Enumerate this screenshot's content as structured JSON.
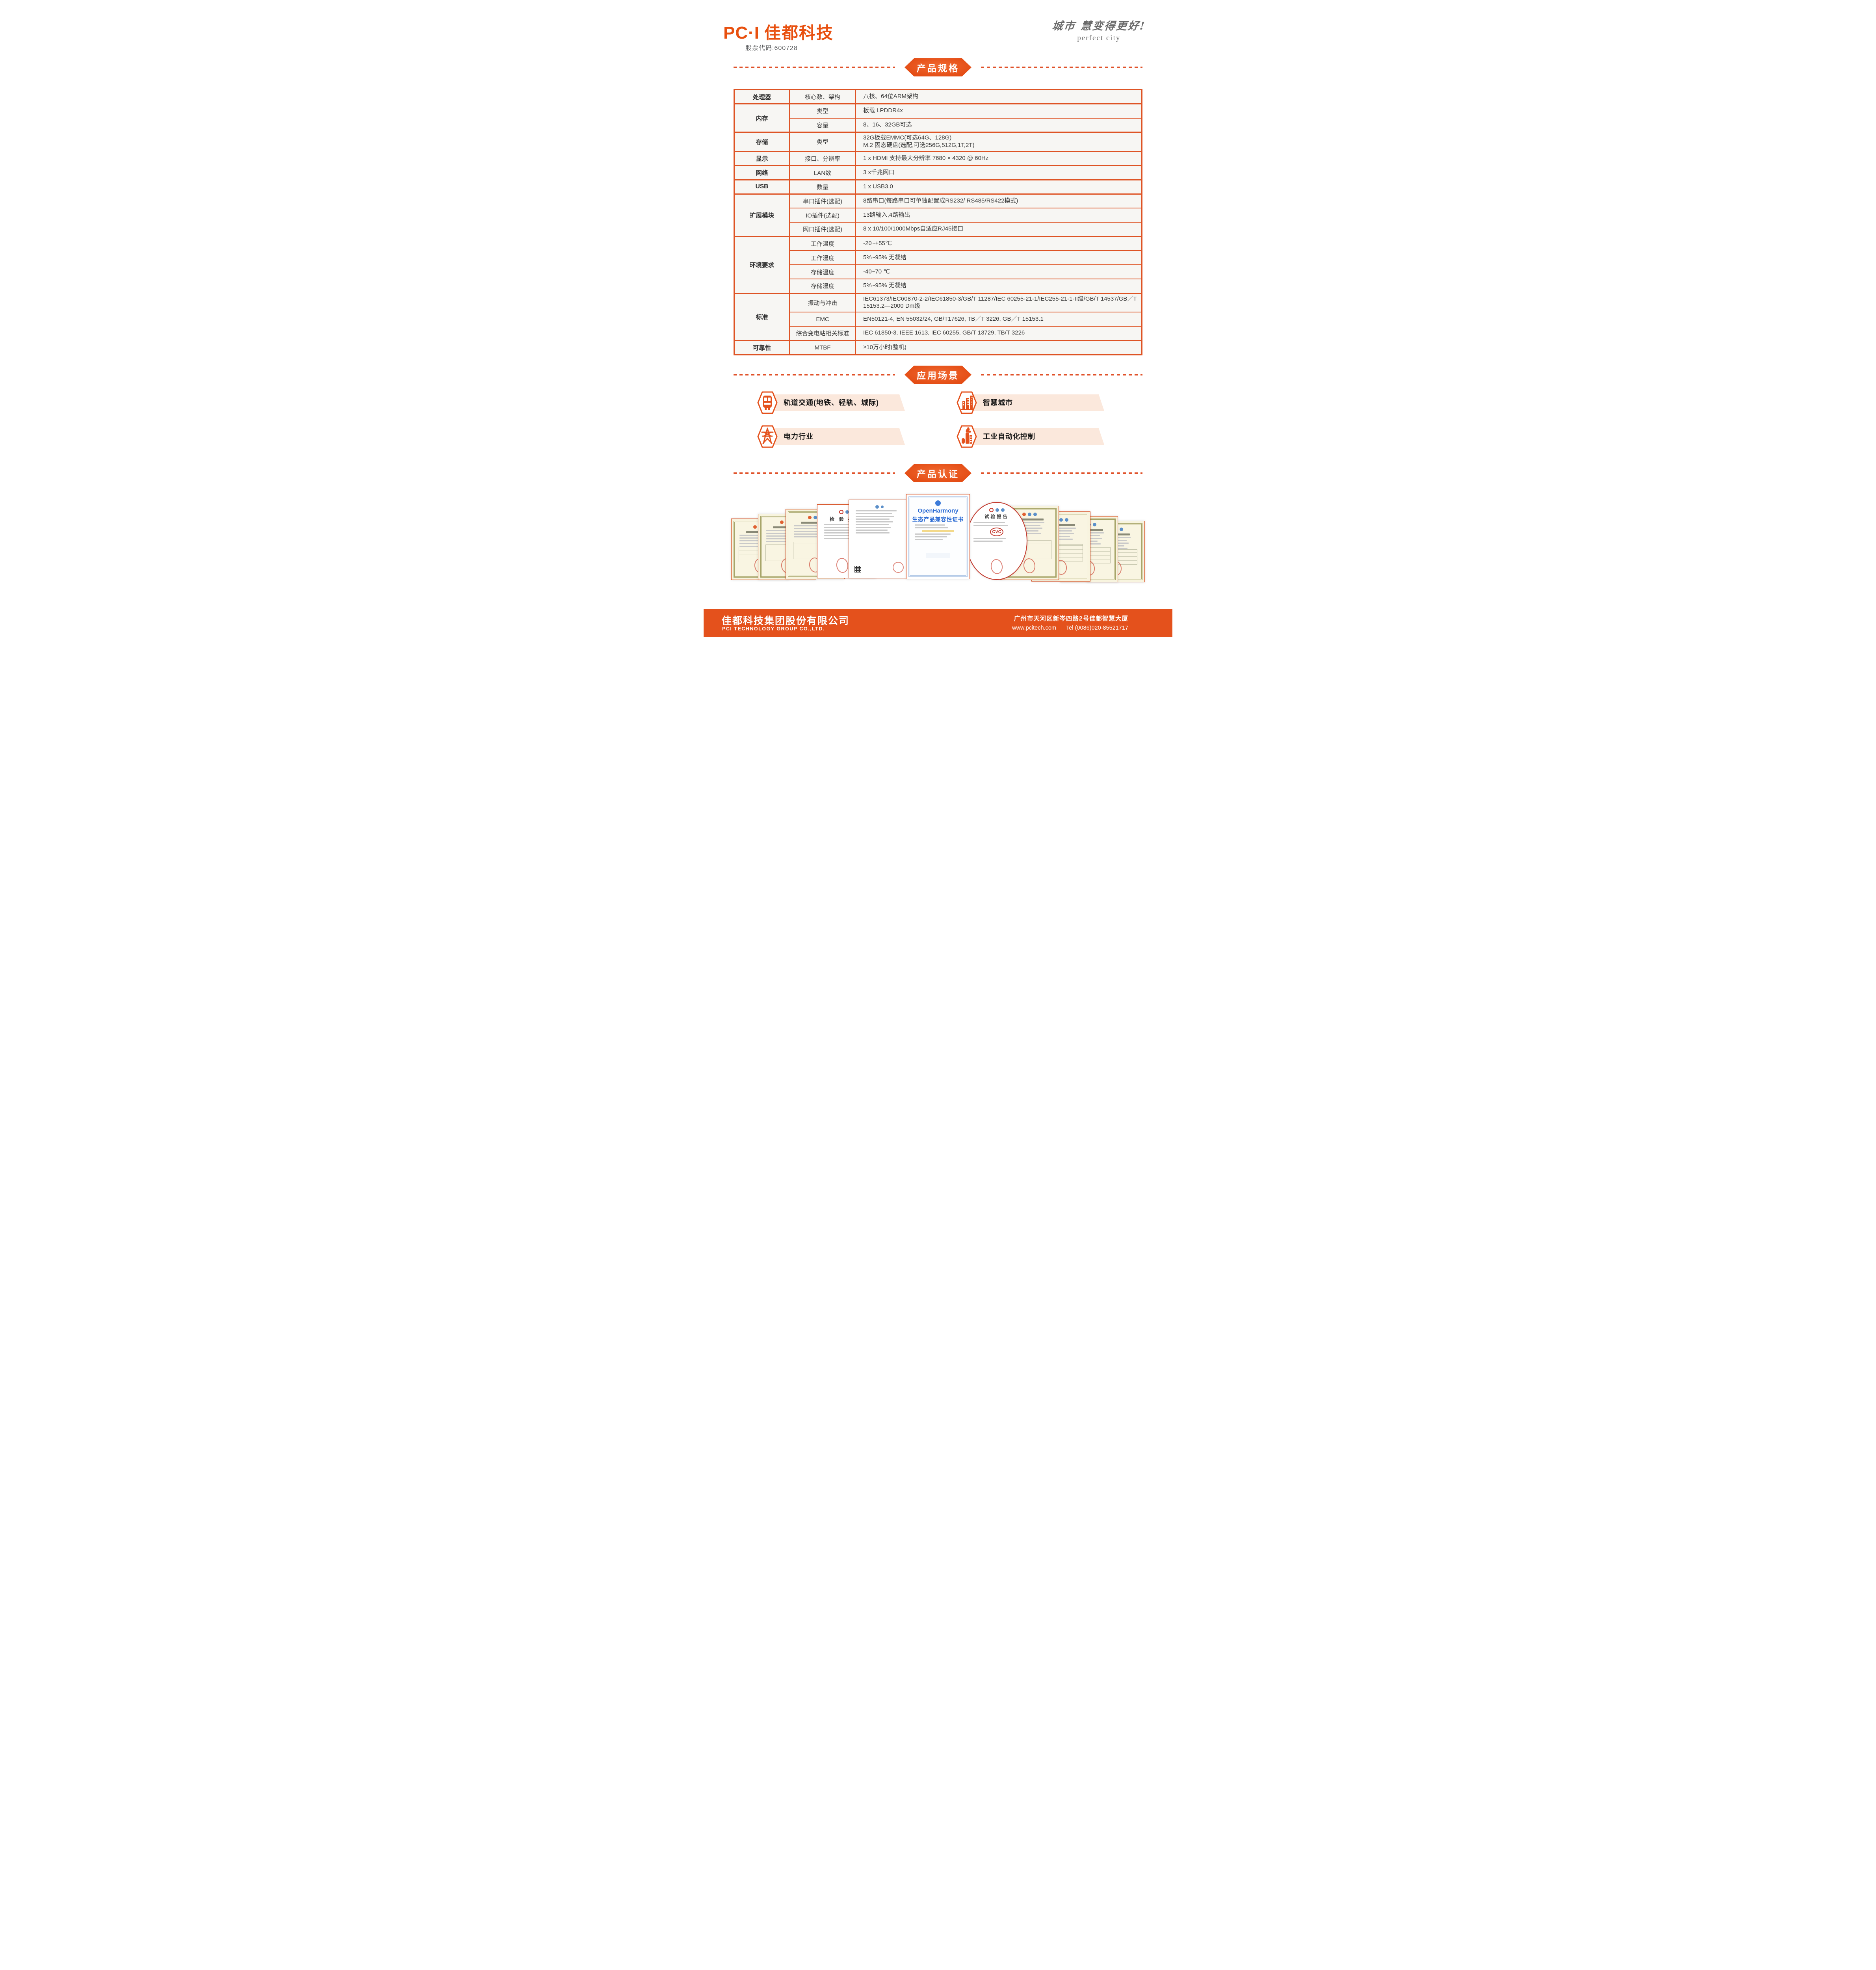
{
  "header": {
    "logo_mark": "PC·I",
    "logo_name": "佳都科技",
    "stock_code": "股票代码:600728",
    "slogan_cn": "城市 慧变得更好!",
    "slogan_en": "perfect city"
  },
  "sections": {
    "specs": "产品规格",
    "applications": "应用场景",
    "certifications": "产品认证"
  },
  "spec_table": {
    "groups": [
      {
        "category": "处理器",
        "rows": [
          {
            "label": "核心数、架构",
            "value": "八核、64位ARM架构"
          }
        ]
      },
      {
        "category": "内存",
        "rows": [
          {
            "label": "类型",
            "value": "板载 LPDDR4x"
          },
          {
            "label": "容量",
            "value": "8、16、32GB可选"
          }
        ]
      },
      {
        "category": "存储",
        "rows": [
          {
            "label": "类型",
            "value": "32G板载EMMC(可选64G、128G)\nM.2 固态硬盘(选配,可选256G,512G,1T,2T)",
            "tall": true
          }
        ]
      },
      {
        "category": "显示",
        "rows": [
          {
            "label": "接口、分辨率",
            "value": "1 x HDMI 支持最大分辨率 7680 × 4320 @ 60Hz"
          }
        ]
      },
      {
        "category": "网络",
        "rows": [
          {
            "label": "LAN数",
            "value": "3 x千兆网口"
          }
        ]
      },
      {
        "category": "USB",
        "rows": [
          {
            "label": "数量",
            "value": "1 x USB3.0"
          }
        ]
      },
      {
        "category": "扩展模块",
        "rows": [
          {
            "label": "串口插件(选配)",
            "value": "8路串口(每路串口可单独配置成RS232/ RS485/RS422模式)"
          },
          {
            "label": "IO插件(选配)",
            "value": "13路输入,4路输出"
          },
          {
            "label": "网口插件(选配)",
            "value": "8 x 10/100/1000Mbps自适应RJ45接口"
          }
        ]
      },
      {
        "category": "环境要求",
        "rows": [
          {
            "label": "工作温度",
            "value": "-20~+55℃"
          },
          {
            "label": "工作湿度",
            "value": "5%~95% 无凝结"
          },
          {
            "label": "存储温度",
            "value": "-40~70 ℃"
          },
          {
            "label": "存储湿度",
            "value": "5%~95% 无凝结"
          }
        ]
      },
      {
        "category": "标准",
        "rows": [
          {
            "label": "振动与冲击",
            "value": "IEC61373/IEC60870-2-2/IEC61850-3/GB/T 11287/IEC 60255-21-1/IEC255-21-1-II级/GB/T 14537/GB／T 15153.2—2000 Dm级",
            "tall": true
          },
          {
            "label": "EMC",
            "value": "EN50121-4, EN 55032/24, GB/T17626, TB／T 3226, GB／T 15153.1"
          },
          {
            "label": "综合变电站相关标准",
            "value": "IEC 61850-3, IEEE 1613, IEC 60255, GB/T 13729, TB/T 3226"
          }
        ]
      },
      {
        "category": "可靠性",
        "rows": [
          {
            "label": "MTBF",
            "value": "≥10万小时(整机)"
          }
        ]
      }
    ]
  },
  "applications": [
    {
      "label": "轨道交通(地铁、轻轨、城际)",
      "icon": "train-icon"
    },
    {
      "label": "智慧城市",
      "icon": "city-buildings-icon"
    },
    {
      "label": "电力行业",
      "icon": "power-tower-icon"
    },
    {
      "label": "工业自动化控制",
      "icon": "factory-icon"
    }
  ],
  "certificates": {
    "openharmony_title_line1": "OpenHarmony",
    "openharmony_title_line2": "生态产品兼容性证书",
    "inspection_report_title": "检 验 报 告",
    "test_report_title": "试验报告",
    "cvc_label": "CVC",
    "items": [
      {
        "type": "cream"
      },
      {
        "type": "cream"
      },
      {
        "type": "cream"
      },
      {
        "type": "white"
      },
      {
        "type": "whiteblue"
      },
      {
        "type": "openharmony"
      },
      {
        "type": "cvc"
      },
      {
        "type": "cream"
      },
      {
        "type": "cream"
      },
      {
        "type": "cream"
      },
      {
        "type": "cream"
      }
    ]
  },
  "footer": {
    "company_cn": "佳都科技集团股份有限公司",
    "company_en": "PCI TECHNOLOGY GROUP CO.,LTD.",
    "address": "广州市天河区新岑四路2号佳都智慧大厦",
    "website": "www.pcitech.com",
    "tel": "Tel (0086)020-85521717"
  }
}
